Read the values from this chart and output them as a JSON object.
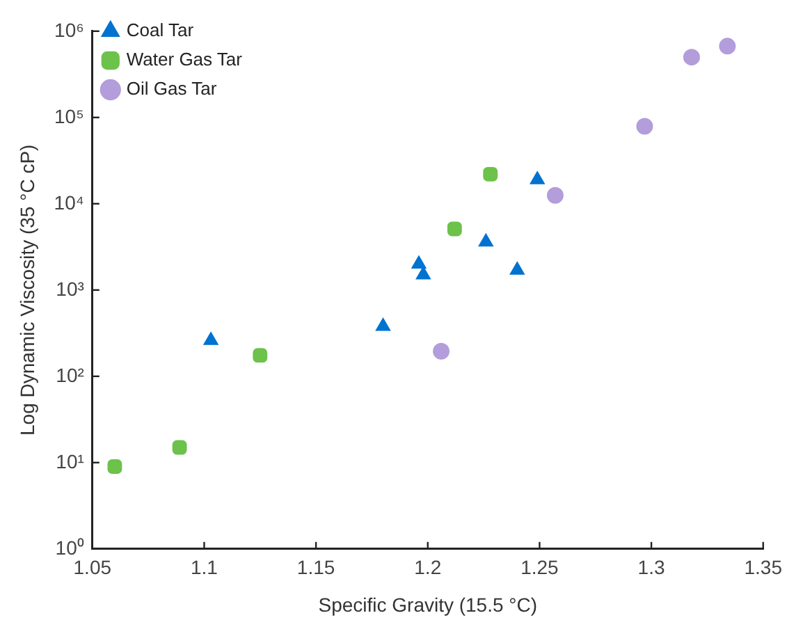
{
  "chart_data": {
    "type": "scatter",
    "xlabel": "Specific Gravity (15.5 °C)",
    "ylabel": "Log Dynamic Viscosity (35 °C cP)",
    "log": "y",
    "grid": false,
    "legend": "top left",
    "xlim": [
      1.05,
      1.35
    ],
    "xticks": [
      1.05,
      1.1,
      1.15,
      1.2,
      1.25,
      1.3,
      1.35
    ],
    "ylim": [
      1,
      1000000
    ],
    "yticks": [
      {
        "value": 1,
        "label": "10⁰"
      },
      {
        "value": 10,
        "label": "10¹"
      },
      {
        "value": 100,
        "label": "10²"
      },
      {
        "value": 1000,
        "label": "10³"
      },
      {
        "value": 10000,
        "label": "10⁴"
      },
      {
        "value": 100000,
        "label": "10⁵"
      },
      {
        "value": 1000000,
        "label": "10⁶"
      }
    ],
    "series": [
      {
        "name": "Coal Tar",
        "color": "#0072cf",
        "marker": "triangle",
        "x": [
          1.103,
          1.18,
          1.196,
          1.198,
          1.226,
          1.24,
          1.249
        ],
        "values": [
          260,
          380,
          2000,
          1500,
          3600,
          1700,
          19000
        ]
      },
      {
        "name": "Water Gas Tar",
        "color": "#6cc24a",
        "marker": "square",
        "x": [
          1.06,
          1.089,
          1.125,
          1.212,
          1.228
        ],
        "values": [
          9,
          15,
          175,
          5100,
          22000
        ]
      },
      {
        "name": "Oil Gas Tar",
        "color": "#b39ddb",
        "marker": "circle",
        "x": [
          1.206,
          1.257,
          1.297,
          1.318,
          1.334
        ],
        "values": [
          195,
          12500,
          79000,
          500000,
          670000
        ]
      }
    ]
  }
}
